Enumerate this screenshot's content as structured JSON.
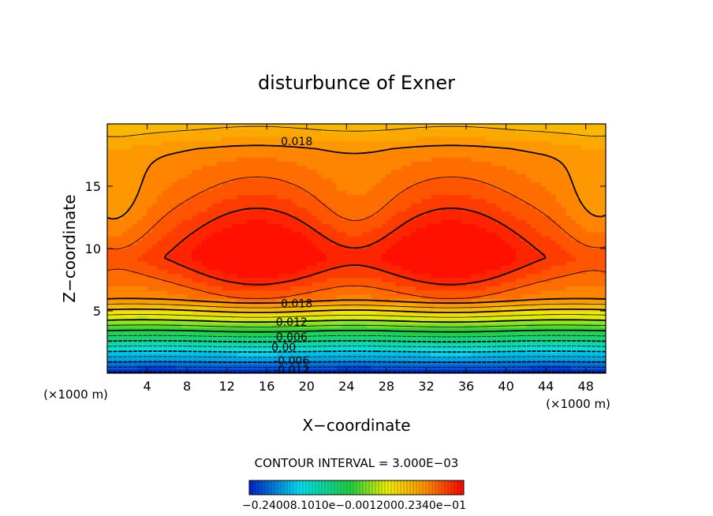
{
  "chart_data": {
    "type": "contour",
    "title": "disturbunce of Exner",
    "xlabel": "X−coordinate",
    "ylabel": "Z−coordinate",
    "x_unit_left": "(×1000 m)",
    "x_unit_right": "(×1000 m)",
    "xlim": [
      0,
      50
    ],
    "ylim": [
      0,
      20
    ],
    "xticks": [
      4,
      8,
      12,
      16,
      20,
      24,
      28,
      32,
      36,
      40,
      44,
      48
    ],
    "yticks": [
      5,
      10,
      15
    ],
    "contour_interval_text": "CONTOUR INTERVAL = 3.000E−03",
    "contour_interval": 0.003,
    "contour_labels": [
      {
        "text": "0.018",
        "x": 19,
        "z": 18.6
      },
      {
        "text": "0.018",
        "x": 19,
        "z": 5.6
      },
      {
        "text": "0.012",
        "x": 18.5,
        "z": 4.1
      },
      {
        "text": "0.006",
        "x": 18.5,
        "z": 2.9
      },
      {
        "text": "0.00",
        "x": 17.7,
        "z": 2.1
      },
      {
        "text": "-0.006",
        "x": 18.5,
        "z": 1.0
      },
      {
        "text": "-0.012",
        "x": 18.5,
        "z": 0.3
      }
    ],
    "field_peak": 0.0265,
    "field_min": -0.024,
    "maxima": [
      {
        "x": 15,
        "z": 9.3
      },
      {
        "x": 34.5,
        "z": 9.3
      }
    ],
    "colorbar": {
      "min": -0.024,
      "max": 0.027,
      "tick_text": "−0.24008.1010e−0.0012000.2340e−01"
    },
    "colors": {
      "low": "#0022c8",
      "cyan": "#00e0f0",
      "green": "#20d040",
      "yellow": "#f0f000",
      "orange": "#ff9000",
      "red": "#ff1000"
    }
  }
}
